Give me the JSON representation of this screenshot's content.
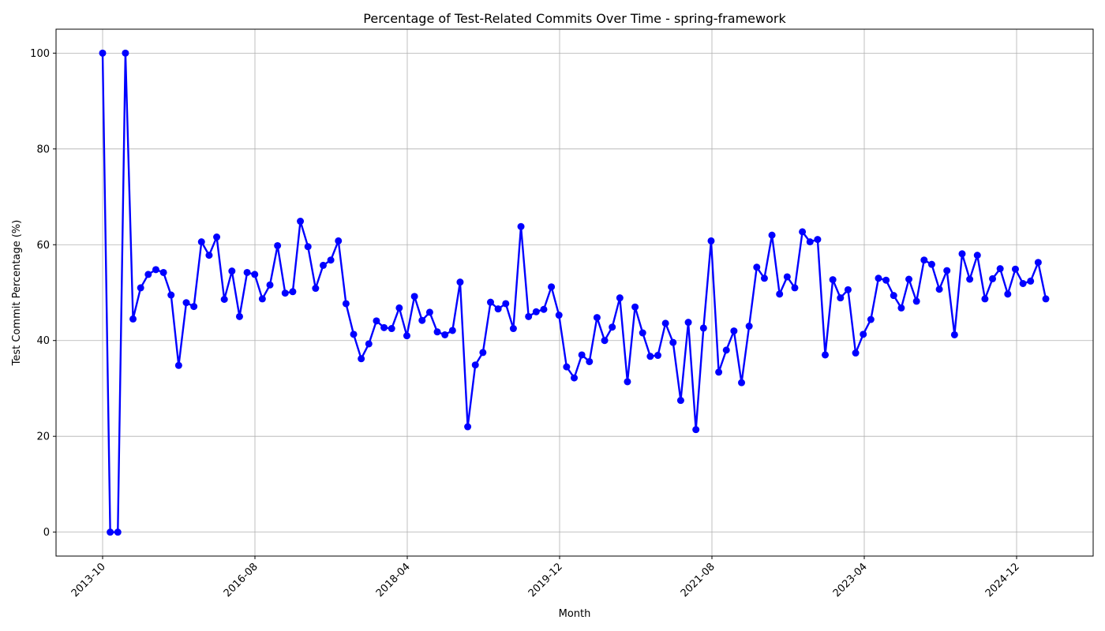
{
  "chart_data": {
    "type": "line",
    "title": "Percentage of Test-Related Commits Over Time - spring-framework",
    "xlabel": "Month",
    "ylabel": "Test Commit Percentage (%)",
    "ylim": [
      -5,
      105
    ],
    "yticks": [
      0,
      20,
      40,
      60,
      80,
      100
    ],
    "xticks": [
      "2013-10",
      "2016-08",
      "2018-04",
      "2019-12",
      "2021-08",
      "2023-04",
      "2024-12"
    ],
    "grid": true,
    "line_color": "#0000ff",
    "series": [
      {
        "values": [
          100,
          0,
          0,
          100,
          44.5,
          51,
          53.8,
          54.8,
          54.2,
          49.5,
          34.8,
          47.9,
          47.1,
          60.6,
          57.8,
          61.6,
          48.6,
          54.5,
          45,
          54.2,
          53.8,
          48.7,
          51.6,
          59.8,
          49.9,
          50.2,
          64.9,
          59.6,
          50.9,
          55.7,
          56.8,
          60.8,
          47.7,
          41.3,
          36.2,
          39.3,
          44.1,
          42.7,
          42.5,
          46.8,
          41,
          49.2,
          44.2,
          45.9,
          41.8,
          41.2,
          42.1,
          52.2,
          22,
          34.9,
          37.5,
          48,
          46.6,
          47.7,
          42.5,
          63.8,
          45,
          46,
          46.5,
          51.2,
          45.3,
          34.5,
          32.2,
          37,
          35.6,
          44.8,
          40,
          42.8,
          48.9,
          31.4,
          47,
          41.6,
          36.7,
          36.9,
          43.6,
          39.6,
          27.5,
          43.8,
          21.4,
          42.6,
          60.8,
          33.4,
          38,
          42,
          31.2,
          43,
          55.3,
          53,
          62,
          49.7,
          53.3,
          51,
          62.7,
          60.6,
          61.1,
          37,
          52.7,
          48.9,
          50.6,
          37.4,
          41.3,
          44.4,
          53,
          52.6,
          49.4,
          46.8,
          52.8,
          48.2,
          56.8,
          55.9,
          50.7,
          54.6,
          41.2,
          58.1,
          52.8,
          57.8,
          48.7,
          52.9,
          55,
          49.7,
          54.9,
          51.9,
          52.4,
          56.3,
          48.7
        ]
      }
    ]
  }
}
